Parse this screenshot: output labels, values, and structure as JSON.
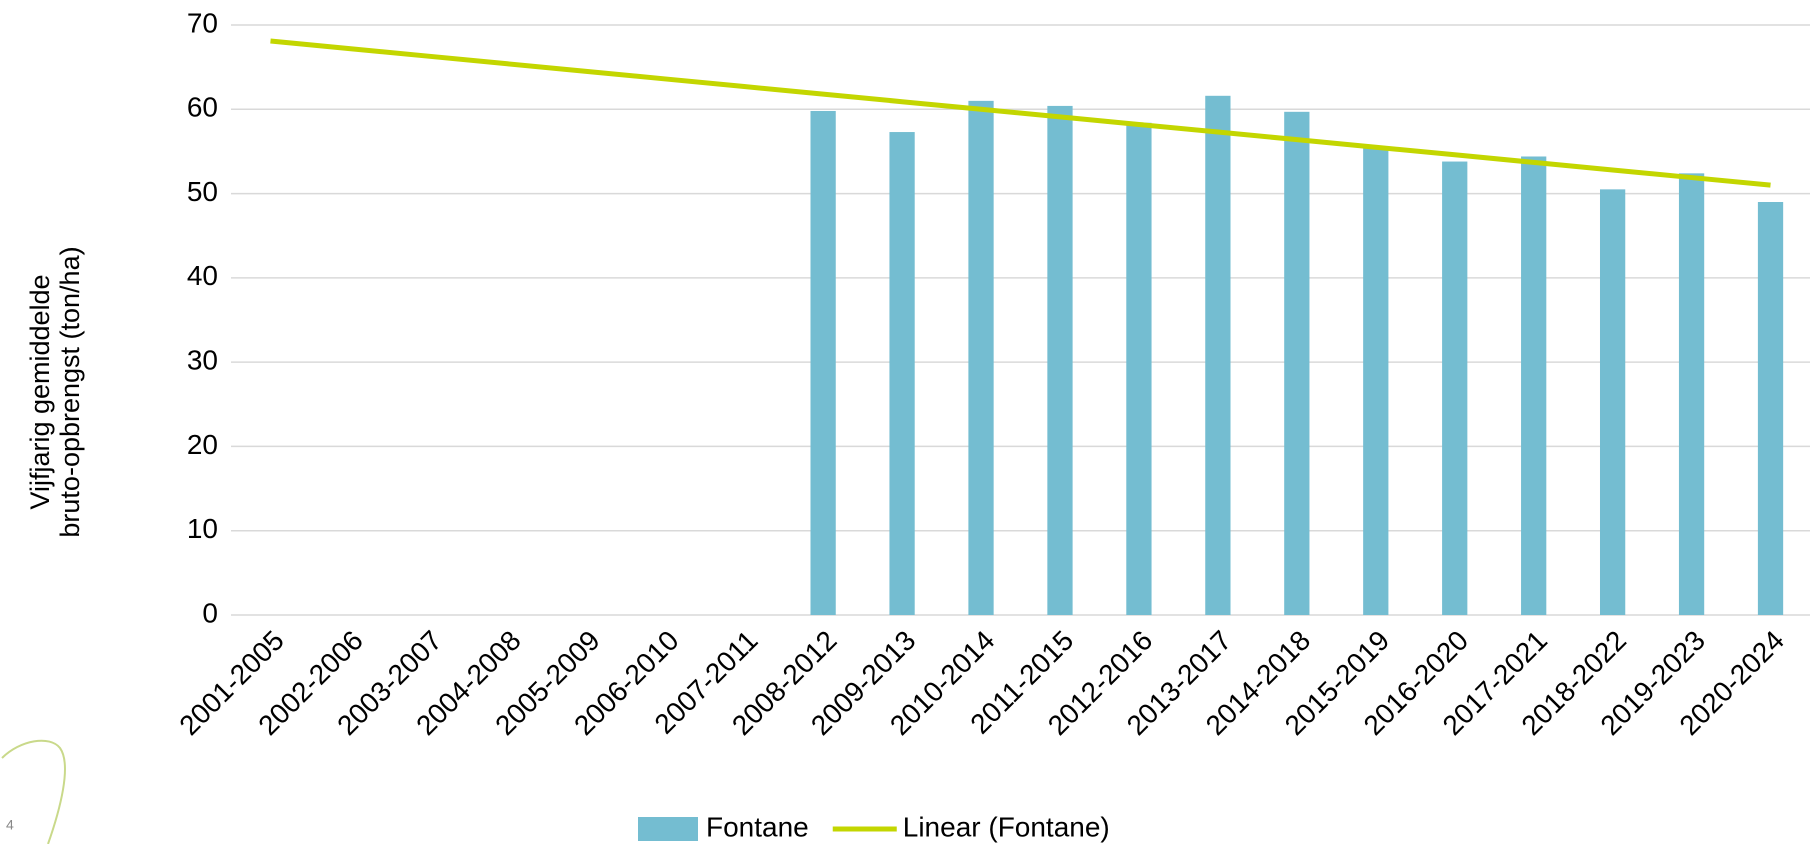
{
  "chart_data": {
    "type": "bar",
    "y_label": [
      "Vijfjarig gemiddelde",
      "bruto-opbrengst (ton/ha)"
    ],
    "categories": [
      "2001-2005",
      "2002-2006",
      "2003-2007",
      "2004-2008",
      "2005-2009",
      "2006-2010",
      "2007-2011",
      "2008-2012",
      "2009-2013",
      "2010-2014",
      "2011-2015",
      "2012-2016",
      "2013-2017",
      "2014-2018",
      "2015-2019",
      "2016-2020",
      "2017-2021",
      "2018-2022",
      "2019-2023",
      "2020-2024"
    ],
    "series": [
      {
        "name": "Fontane",
        "type": "bar",
        "color": "#74bdd1",
        "values": [
          null,
          null,
          null,
          null,
          null,
          null,
          null,
          59.8,
          57.3,
          61.0,
          60.4,
          58.4,
          61.6,
          59.7,
          55.6,
          53.8,
          54.4,
          50.5,
          52.4,
          49.0
        ]
      },
      {
        "name": "Linear (Fontane)",
        "type": "line",
        "color": "#c3d600",
        "values": [
          68.1,
          67.2,
          66.3,
          65.4,
          64.5,
          63.6,
          62.7,
          61.8,
          60.9,
          60.0,
          59.1,
          58.2,
          57.3,
          56.4,
          55.5,
          54.6,
          53.7,
          52.8,
          51.9,
          51.0
        ]
      }
    ],
    "ylim": [
      0,
      70
    ],
    "yticks": [
      0,
      10,
      20,
      30,
      40,
      50,
      60,
      70
    ],
    "grid": true,
    "legend": "bottom"
  },
  "slide": {
    "page_number": "4"
  }
}
